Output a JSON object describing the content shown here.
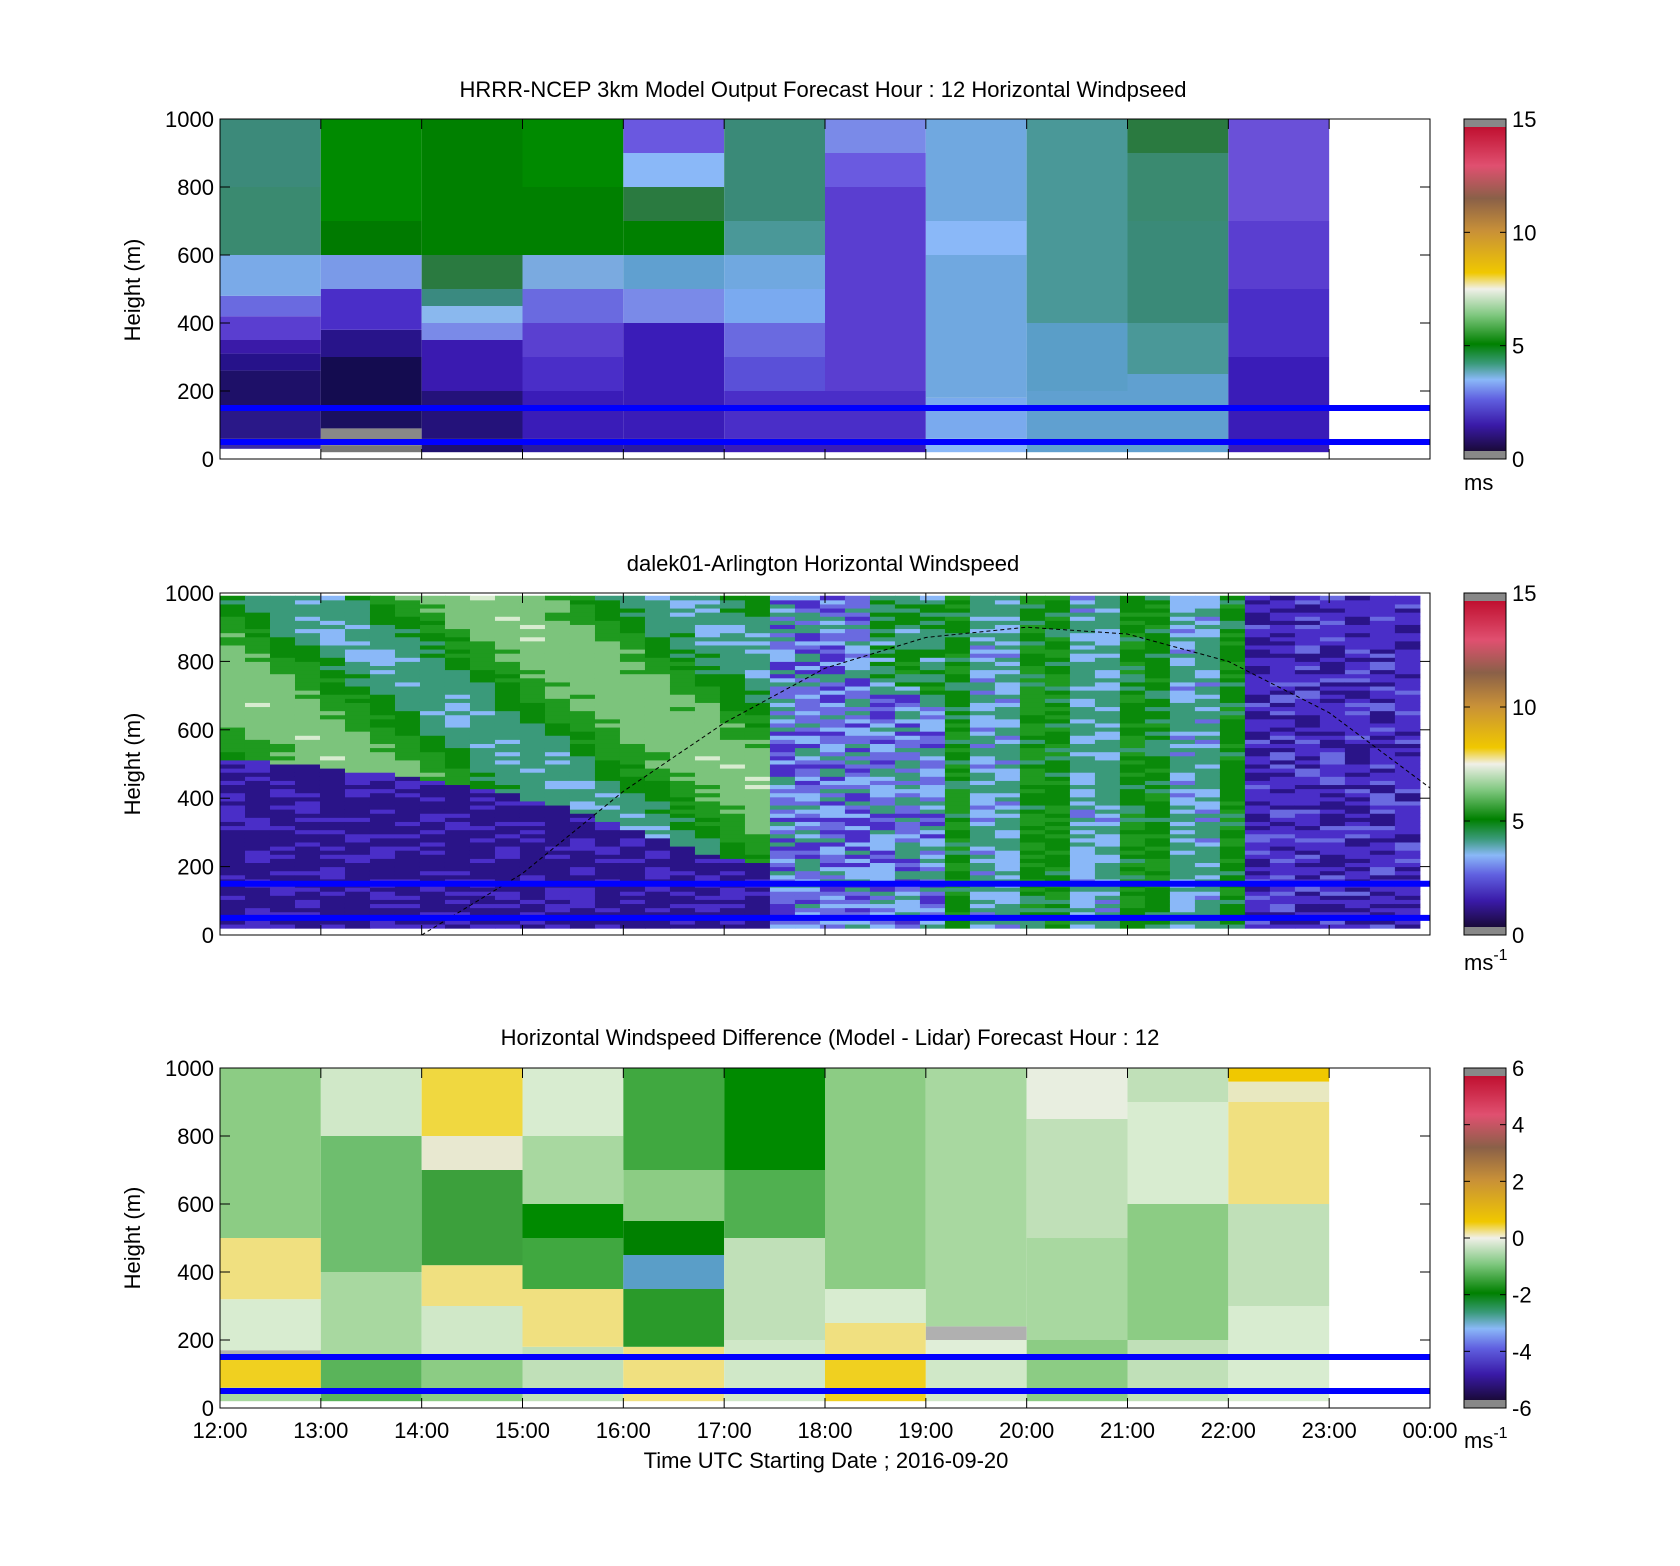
{
  "chart_data": [
    {
      "type": "heatmap",
      "title": "HRRR-NCEP 3km Model Output   Forecast Hour : 12 Horizontal Windpseed",
      "ylabel": "Height (m)",
      "ylim": [
        0,
        1000
      ],
      "yticks": [
        "0",
        "200",
        "400",
        "600",
        "800",
        "1000"
      ],
      "xlim_hours": [
        12,
        24
      ],
      "colorbar": {
        "min": 0,
        "max": 15,
        "ticks": [
          "0",
          "5",
          "10",
          "15"
        ],
        "unit": "ms"
      },
      "columns": [
        {
          "start_hour": 12,
          "end_hour": 13,
          "cells": [
            [
              30,
              60,
              "#3a2aa8"
            ],
            [
              60,
              150,
              "#2a1888"
            ],
            [
              150,
              260,
              "#1e1068"
            ],
            [
              260,
              310,
              "#26128a"
            ],
            [
              310,
              350,
              "#3a1aa8"
            ],
            [
              350,
              420,
              "#5a3ed0"
            ],
            [
              420,
              480,
              "#6a6ae0"
            ],
            [
              480,
              600,
              "#7aaae8"
            ],
            [
              600,
              800,
              "#3a8a70"
            ],
            [
              800,
              1000,
              "#3c8a7a"
            ]
          ]
        },
        {
          "start_hour": 13,
          "end_hour": 14,
          "cells": [
            [
              20,
              40,
              "#777777"
            ],
            [
              40,
              90,
              "#888888"
            ],
            [
              90,
              150,
              "#1a1060"
            ],
            [
              150,
              300,
              "#140c50"
            ],
            [
              300,
              380,
              "#28148a"
            ],
            [
              380,
              500,
              "#4a2ec8"
            ],
            [
              500,
              600,
              "#7a9ae8"
            ],
            [
              600,
              700,
              "#007a00"
            ],
            [
              700,
              1000,
              "#008a00"
            ]
          ]
        },
        {
          "start_hour": 14,
          "end_hour": 15,
          "cells": [
            [
              20,
              60,
              "#1e1070"
            ],
            [
              60,
              200,
              "#24127a"
            ],
            [
              200,
              350,
              "#3a1ab0"
            ],
            [
              350,
              400,
              "#7a8ae8"
            ],
            [
              400,
              450,
              "#8ab8ee"
            ],
            [
              450,
              500,
              "#3a8a80"
            ],
            [
              500,
              600,
              "#2a7a40"
            ],
            [
              600,
              1000,
              "#008000"
            ]
          ]
        },
        {
          "start_hour": 15,
          "end_hour": 16,
          "cells": [
            [
              20,
              60,
              "#2a1aa0"
            ],
            [
              60,
              200,
              "#3a1cb8"
            ],
            [
              200,
              300,
              "#4a2ec8"
            ],
            [
              300,
              400,
              "#5a40d0"
            ],
            [
              400,
              500,
              "#6a6ae0"
            ],
            [
              500,
              600,
              "#7aaae0"
            ],
            [
              600,
              800,
              "#008000"
            ],
            [
              800,
              1000,
              "#008a00"
            ]
          ]
        },
        {
          "start_hour": 16,
          "end_hour": 17,
          "cells": [
            [
              20,
              60,
              "#2a1aa0"
            ],
            [
              60,
              400,
              "#3a1cb8"
            ],
            [
              400,
              500,
              "#7a8ae8"
            ],
            [
              500,
              600,
              "#60a0d0"
            ],
            [
              600,
              700,
              "#008000"
            ],
            [
              700,
              800,
              "#2a7a40"
            ],
            [
              800,
              900,
              "#8ab8f8"
            ],
            [
              900,
              1000,
              "#6a58e0"
            ]
          ]
        },
        {
          "start_hour": 17,
          "end_hour": 18,
          "cells": [
            [
              20,
              60,
              "#3a1cb8"
            ],
            [
              60,
              200,
              "#4a2ec8"
            ],
            [
              200,
              300,
              "#5a50d8"
            ],
            [
              300,
              400,
              "#6a6ae0"
            ],
            [
              400,
              500,
              "#7aaaf0"
            ],
            [
              500,
              600,
              "#70a8e0"
            ],
            [
              600,
              700,
              "#4a9898"
            ],
            [
              700,
              1000,
              "#3a8a78"
            ]
          ]
        },
        {
          "start_hour": 18,
          "end_hour": 19,
          "cells": [
            [
              20,
              60,
              "#3a1cb8"
            ],
            [
              60,
              200,
              "#4a2ec8"
            ],
            [
              200,
              800,
              "#5a3ed0"
            ],
            [
              800,
              900,
              "#6a5ae0"
            ],
            [
              900,
              1000,
              "#7a8ae8"
            ]
          ]
        },
        {
          "start_hour": 19,
          "end_hour": 20,
          "cells": [
            [
              20,
              60,
              "#8ab8f8"
            ],
            [
              60,
              180,
              "#7aaaee"
            ],
            [
              180,
              600,
              "#70a8e0"
            ],
            [
              600,
              700,
              "#8ab8f8"
            ],
            [
              700,
              1000,
              "#70a8e0"
            ]
          ]
        },
        {
          "start_hour": 20,
          "end_hour": 21,
          "cells": [
            [
              20,
              200,
              "#60a0d0"
            ],
            [
              200,
              400,
              "#5a9ec8"
            ],
            [
              400,
              1000,
              "#4a9898"
            ]
          ]
        },
        {
          "start_hour": 21,
          "end_hour": 22,
          "cells": [
            [
              20,
              250,
              "#60a0d0"
            ],
            [
              250,
              400,
              "#4a9898"
            ],
            [
              400,
              700,
              "#3a8a78"
            ],
            [
              700,
              900,
              "#3a8a70"
            ],
            [
              900,
              1000,
              "#2a7a40"
            ]
          ]
        },
        {
          "start_hour": 22,
          "end_hour": 23,
          "cells": [
            [
              20,
              300,
              "#3a1cb8"
            ],
            [
              300,
              500,
              "#4a2ec8"
            ],
            [
              500,
              700,
              "#5a3ed0"
            ],
            [
              700,
              1000,
              "#6a50d8"
            ]
          ]
        }
      ],
      "reference_lines_m": [
        150,
        50
      ]
    },
    {
      "type": "heatmap",
      "title": "dalek01-Arlington  Horizontal Windspeed",
      "ylabel": "Height (m)",
      "ylim": [
        0,
        1000
      ],
      "yticks": [
        "0",
        "200",
        "400",
        "600",
        "800",
        "1000"
      ],
      "xlim_hours": [
        12,
        24
      ],
      "data_end_hour": 23.9,
      "colorbar": {
        "min": 0,
        "max": 15,
        "ticks": [
          "0",
          "5",
          "10",
          "15"
        ],
        "unit": "ms",
        "unit_exp": "-1"
      },
      "boundary_layer_m": [
        [
          12,
          510
        ],
        [
          13,
          490
        ],
        [
          14,
          450
        ],
        [
          15,
          400
        ],
        [
          16,
          310
        ],
        [
          17,
          220
        ],
        [
          17.5,
          200
        ]
      ],
      "curve_m": [
        [
          14,
          0
        ],
        [
          15,
          180
        ],
        [
          16,
          420
        ],
        [
          17,
          620
        ],
        [
          18,
          780
        ],
        [
          19,
          870
        ],
        [
          20,
          900
        ],
        [
          21,
          880
        ],
        [
          22,
          800
        ],
        [
          23,
          650
        ],
        [
          24,
          430
        ]
      ],
      "reference_lines_m": [
        150,
        50
      ]
    },
    {
      "type": "heatmap",
      "title": "Horizontal Windspeed Difference (Model - Lidar) Forecast Hour : 12",
      "ylabel": "Height (m)",
      "xlabel": "Time UTC  Starting Date ; 2016-09-20",
      "ylim": [
        0,
        1000
      ],
      "yticks": [
        "0",
        "200",
        "400",
        "600",
        "800",
        "1000"
      ],
      "xticks": [
        "12:00",
        "13:00",
        "14:00",
        "15:00",
        "16:00",
        "17:00",
        "18:00",
        "19:00",
        "20:00",
        "21:00",
        "22:00",
        "23:00",
        "00:00"
      ],
      "xlim_hours": [
        12,
        24
      ],
      "colorbar": {
        "min": -6,
        "max": 6,
        "ticks": [
          "-6",
          "-4",
          "-2",
          "0",
          "2",
          "4",
          "6"
        ],
        "unit": "ms",
        "unit_exp": "-1"
      },
      "columns": [
        {
          "start_hour": 12,
          "end_hour": 13,
          "cells": [
            [
              20,
              60,
              "#a8d8a0"
            ],
            [
              60,
              150,
              "#f0d020"
            ],
            [
              150,
              170,
              "#b0b0b0"
            ],
            [
              170,
              320,
              "#d8ecd0"
            ],
            [
              320,
              500,
              "#f0e080"
            ],
            [
              500,
              1000,
              "#8ccc84"
            ]
          ]
        },
        {
          "start_hour": 13,
          "end_hour": 14,
          "cells": [
            [
              20,
              150,
              "#5ab45a"
            ],
            [
              150,
              400,
              "#a8d8a0"
            ],
            [
              400,
              800,
              "#6ebe6e"
            ],
            [
              800,
              1000,
              "#d0e8c8"
            ]
          ]
        },
        {
          "start_hour": 14,
          "end_hour": 15,
          "cells": [
            [
              20,
              150,
              "#8ccc84"
            ],
            [
              150,
              300,
              "#d0e8c8"
            ],
            [
              300,
              420,
              "#f0e080"
            ],
            [
              420,
              700,
              "#3ca03c"
            ],
            [
              700,
              800,
              "#e8e8d0"
            ],
            [
              800,
              1000,
              "#f0d840"
            ]
          ]
        },
        {
          "start_hour": 15,
          "end_hour": 16,
          "cells": [
            [
              20,
              180,
              "#c0e0b8"
            ],
            [
              180,
              350,
              "#f0e080"
            ],
            [
              350,
              500,
              "#40a840"
            ],
            [
              500,
              600,
              "#008a00"
            ],
            [
              600,
              800,
              "#a8d8a0"
            ],
            [
              800,
              1000,
              "#d8ecd0"
            ]
          ]
        },
        {
          "start_hour": 16,
          "end_hour": 17,
          "cells": [
            [
              20,
              180,
              "#f0e080"
            ],
            [
              180,
              350,
              "#2a9a2a"
            ],
            [
              350,
              450,
              "#5a9ec8"
            ],
            [
              450,
              550,
              "#008000"
            ],
            [
              550,
              700,
              "#8ccc84"
            ],
            [
              700,
              1000,
              "#40a840"
            ]
          ]
        },
        {
          "start_hour": 17,
          "end_hour": 18,
          "cells": [
            [
              20,
              200,
              "#d0e8c8"
            ],
            [
              200,
              500,
              "#c0e0b8"
            ],
            [
              500,
              700,
              "#50b050"
            ],
            [
              700,
              1000,
              "#008a00"
            ]
          ]
        },
        {
          "start_hour": 18,
          "end_hour": 19,
          "cells": [
            [
              20,
              150,
              "#f0d020"
            ],
            [
              150,
              250,
              "#f0e080"
            ],
            [
              250,
              350,
              "#d8ecd0"
            ],
            [
              350,
              1000,
              "#8ccc84"
            ]
          ]
        },
        {
          "start_hour": 19,
          "end_hour": 20,
          "cells": [
            [
              20,
              150,
              "#d0e8c8"
            ],
            [
              150,
              200,
              "#e0eed8"
            ],
            [
              200,
              240,
              "#b0b0b0"
            ],
            [
              240,
              1000,
              "#a8d8a0"
            ]
          ]
        },
        {
          "start_hour": 20,
          "end_hour": 21,
          "cells": [
            [
              20,
              200,
              "#8ccc84"
            ],
            [
              200,
              500,
              "#a8d8a0"
            ],
            [
              500,
              850,
              "#c0e0b8"
            ],
            [
              850,
              1000,
              "#e8eee0"
            ]
          ]
        },
        {
          "start_hour": 21,
          "end_hour": 22,
          "cells": [
            [
              20,
              200,
              "#c0e0b8"
            ],
            [
              200,
              600,
              "#8ccc84"
            ],
            [
              600,
              900,
              "#d8ecd0"
            ],
            [
              900,
              1000,
              "#c0e0b8"
            ]
          ]
        },
        {
          "start_hour": 22,
          "end_hour": 23,
          "cells": [
            [
              20,
              300,
              "#d8ecd0"
            ],
            [
              300,
              600,
              "#c0e0b8"
            ],
            [
              600,
              900,
              "#f0e080"
            ],
            [
              900,
              960,
              "#e8e8c0"
            ],
            [
              960,
              1000,
              "#f0c800"
            ]
          ]
        }
      ],
      "reference_lines_m": [
        150,
        50
      ]
    }
  ]
}
